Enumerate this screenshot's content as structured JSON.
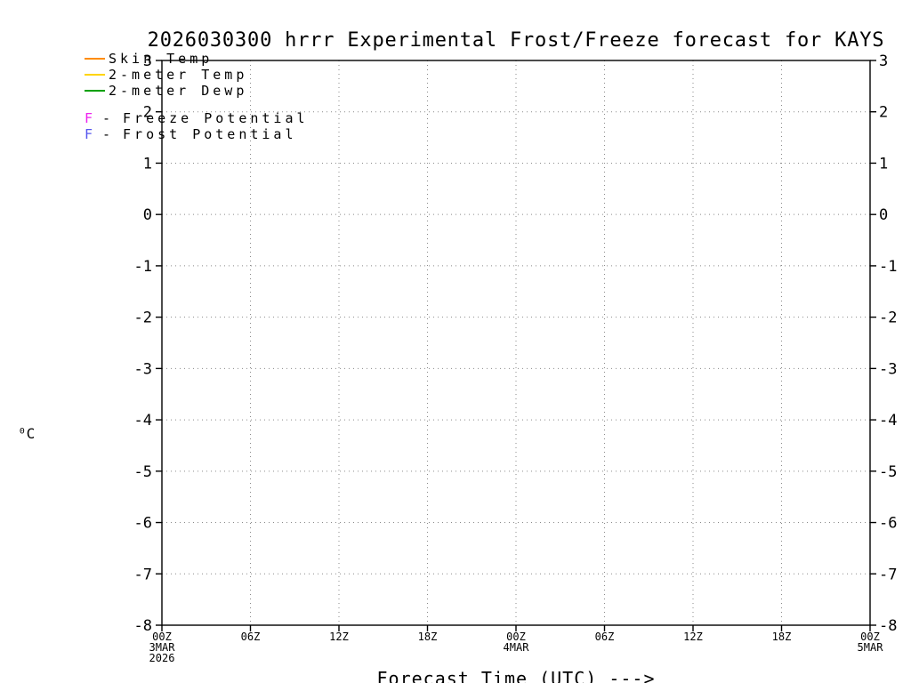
{
  "chart_data": {
    "type": "line",
    "title": "2026030300 hrrr Experimental Frost/Freeze forecast for KAYS",
    "xlabel": "Forecast Time (UTC) --->",
    "ylabel": "⁰C",
    "ylim": [
      -8,
      3
    ],
    "y_ticks": [
      3,
      2,
      1,
      0,
      -1,
      -2,
      -3,
      -4,
      -5,
      -6,
      -7,
      -8
    ],
    "x_tick_labels": [
      "00Z",
      "06Z",
      "12Z",
      "18Z",
      "00Z",
      "06Z",
      "12Z",
      "18Z",
      "00Z"
    ],
    "x_hours_span": 48,
    "x_date_annotations": [
      {
        "tick_index": 0,
        "lines": [
          "3MAR",
          "2026"
        ]
      },
      {
        "tick_index": 4,
        "lines": [
          "4MAR"
        ]
      },
      {
        "tick_index": 8,
        "lines": [
          "5MAR"
        ]
      }
    ],
    "grid": true,
    "legend_position": "top-left",
    "legend": [
      {
        "type": "line",
        "label": "Skin Temp",
        "color": "#ff8c00"
      },
      {
        "type": "line",
        "label": "2-meter Temp",
        "color": "#ffd400"
      },
      {
        "type": "line",
        "label": "2-meter Dewp",
        "color": "#00a000"
      },
      {
        "type": "marker",
        "symbol": "F",
        "label": "Freeze Potential",
        "color": "#ee22ee"
      },
      {
        "type": "marker",
        "symbol": "F",
        "label": "Frost Potential",
        "color": "#5555ee"
      }
    ],
    "series": [
      {
        "name": "Skin Temp",
        "color": "#ff8c00",
        "x": [],
        "values": []
      },
      {
        "name": "2-meter Temp",
        "color": "#ffd400",
        "x": [],
        "values": []
      },
      {
        "name": "2-meter Dewp",
        "color": "#00a000",
        "x": [],
        "values": []
      }
    ]
  },
  "colors": {
    "frame": "#000000",
    "grid": "#8a8a8a",
    "text": "#000000",
    "background": "#ffffff"
  }
}
